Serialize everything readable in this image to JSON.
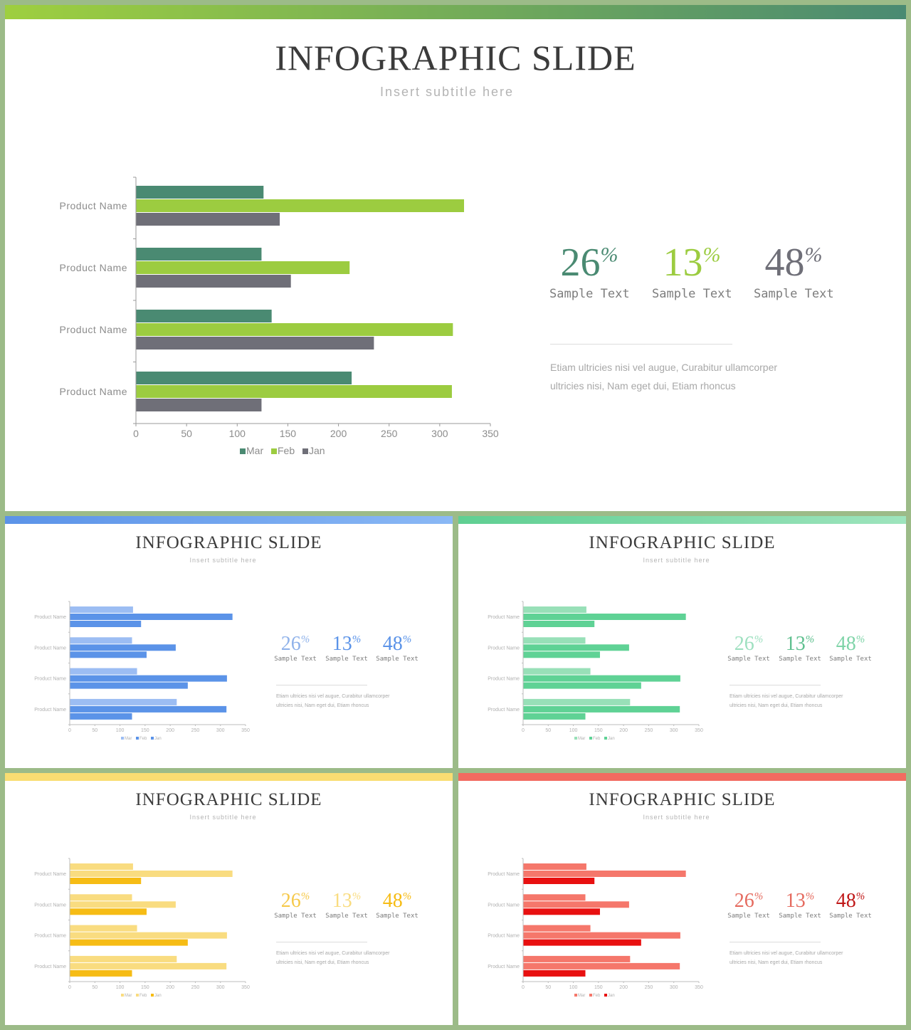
{
  "slides": [
    {
      "id": "main",
      "title": "INFOGRAPHIC SLIDE",
      "subtitle": "Insert  subtitle  here",
      "colors": {
        "bar_top": [
          "#9ecf3f",
          "#4a8a72"
        ],
        "mar": "#4a8a72",
        "feb": "#9ccc40",
        "jan": "#6f6f78",
        "pct": [
          "#4a8a72",
          "#9ccc40",
          "#6f6f78"
        ]
      },
      "stats": [
        {
          "value": "26",
          "unit": "%",
          "label": "Sample  Text"
        },
        {
          "value": "13",
          "unit": "%",
          "label": "Sample  Text"
        },
        {
          "value": "48",
          "unit": "%",
          "label": "Sample  Text"
        }
      ],
      "body": "Etiam  ultricies  nisi  vel  augue,  Curabitur  ullamcorper ultricies  nisi,  Nam  eget  dui,  Etiam  rhoncus"
    },
    {
      "id": "blue",
      "title": "INFOGRAPHIC SLIDE",
      "subtitle": "Insert  subtitle  here",
      "colors": {
        "bar_top": [
          "#5b93e8",
          "#8ab8f5"
        ],
        "mar": "#9cbdf3",
        "feb": "#5b93e8",
        "jan": "#5b93e8",
        "pct": [
          "#8fb2ea",
          "#5b93e8",
          "#5b93e8"
        ]
      },
      "stats": [
        {
          "value": "26",
          "unit": "%",
          "label": "Sample  Text"
        },
        {
          "value": "13",
          "unit": "%",
          "label": "Sample  Text"
        },
        {
          "value": "48",
          "unit": "%",
          "label": "Sample  Text"
        }
      ],
      "body": "Etiam  ultricies  nisi  vel  augue,  Curabitur  ullamcorper ultricies  nisi,  Nam  eget  dui,  Etiam  rhoncus"
    },
    {
      "id": "green",
      "title": "INFOGRAPHIC SLIDE",
      "subtitle": "Insert  subtitle  here",
      "colors": {
        "bar_top": [
          "#5fcf92",
          "#9ee4bd"
        ],
        "mar": "#98e0b8",
        "feb": "#5fd295",
        "jan": "#5fd295",
        "pct": [
          "#9ee0c0",
          "#5fc08f",
          "#7fd4a8"
        ]
      },
      "stats": [
        {
          "value": "26",
          "unit": "%",
          "label": "Sample  Text"
        },
        {
          "value": "13",
          "unit": "%",
          "label": "Sample  Text"
        },
        {
          "value": "48",
          "unit": "%",
          "label": "Sample  Text"
        }
      ],
      "body": "Etiam  ultricies  nisi  vel  augue,  Curabitur  ullamcorper ultricies  nisi,  Nam  eget  dui,  Etiam  rhoncus"
    },
    {
      "id": "yellow",
      "title": "INFOGRAPHIC SLIDE",
      "subtitle": "Insert  subtitle  here",
      "colors": {
        "bar_top": [
          "#f9dd72",
          "#f9dd72"
        ],
        "mar": "#f9dc80",
        "feb": "#f9dc80",
        "jan": "#f6bc15",
        "pct": [
          "#f6c94a",
          "#f9dc80",
          "#f6bc15"
        ]
      },
      "stats": [
        {
          "value": "26",
          "unit": "%",
          "label": "Sample  Text"
        },
        {
          "value": "13",
          "unit": "%",
          "label": "Sample  Text"
        },
        {
          "value": "48",
          "unit": "%",
          "label": "Sample  Text"
        }
      ],
      "body": "Etiam  ultricies  nisi  vel  augue,  Curabitur  ullamcorper ultricies  nisi,  Nam  eget  dui,  Etiam  rhoncus"
    },
    {
      "id": "red",
      "title": "INFOGRAPHIC SLIDE",
      "subtitle": "Insert  subtitle  here",
      "colors": {
        "bar_top": [
          "#f26b60",
          "#f26b60"
        ],
        "mar": "#f5776b",
        "feb": "#f5776b",
        "jan": "#e81010",
        "pct": [
          "#e56a5e",
          "#e56a5e",
          "#c01818"
        ]
      },
      "stats": [
        {
          "value": "26",
          "unit": "%",
          "label": "Sample  Text"
        },
        {
          "value": "13",
          "unit": "%",
          "label": "Sample  Text"
        },
        {
          "value": "48",
          "unit": "%",
          "label": "Sample  Text"
        }
      ],
      "body": "Etiam  ultricies  nisi  vel  augue,  Curabitur  ullamcorper ultricies  nisi,  Nam  eget  dui,  Etiam  rhoncus"
    }
  ],
  "chart_data": {
    "type": "bar",
    "orientation": "horizontal",
    "categories": [
      "Product Name",
      "Product Name",
      "Product Name",
      "Product Name"
    ],
    "series": [
      {
        "name": "Mar",
        "values": [
          126,
          124,
          134,
          213
        ]
      },
      {
        "name": "Feb",
        "values": [
          324,
          211,
          313,
          312
        ]
      },
      {
        "name": "Jan",
        "values": [
          142,
          153,
          235,
          124
        ]
      }
    ],
    "xlim": [
      0,
      350
    ],
    "xticks": [
      0,
      50,
      100,
      150,
      200,
      250,
      300,
      350
    ],
    "legend": {
      "position": "bottom",
      "entries": [
        "Mar",
        "Feb",
        "Jan"
      ]
    },
    "grid": false
  }
}
